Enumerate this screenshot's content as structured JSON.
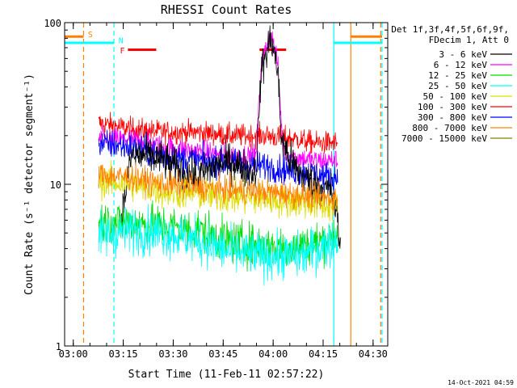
{
  "chart_data": {
    "type": "line",
    "title": "RHESSI Count Rates",
    "xlabel": "Start Time (11-Feb-11 02:57:22)",
    "ylabel": "Count Rate (s⁻¹ detector segment⁻¹)",
    "yscale": "log",
    "ylim": [
      1,
      100
    ],
    "xlim_minutes": [
      0,
      97
    ],
    "x_ticks": [
      {
        "label": "03:00",
        "t": 2.6
      },
      {
        "label": "03:15",
        "t": 17.6
      },
      {
        "label": "03:30",
        "t": 32.6
      },
      {
        "label": "03:45",
        "t": 47.6
      },
      {
        "label": "04:00",
        "t": 62.6
      },
      {
        "label": "04:15",
        "t": 77.6
      },
      {
        "label": "04:30",
        "t": 92.6
      }
    ],
    "y_ticks": [
      {
        "label": "1",
        "v": 1
      },
      {
        "label": "10",
        "v": 10
      },
      {
        "label": "100",
        "v": 100
      }
    ],
    "legend": {
      "title_lines": [
        "Det 1f,3f,4f,5f,6f,9f,",
        "FDecim 1, Att 0"
      ],
      "entries": [
        {
          "label": "3 - 6 keV",
          "color": "#000000"
        },
        {
          "label": "6 - 12 keV",
          "color": "#ff00ff"
        },
        {
          "label": "12 - 25 keV",
          "color": "#00dd00"
        },
        {
          "label": "25 - 50 keV",
          "color": "#00ffff"
        },
        {
          "label": "50 - 100 keV",
          "color": "#dddd00"
        },
        {
          "label": "100 - 300 keV",
          "color": "#ff0000"
        },
        {
          "label": "300 - 800 keV",
          "color": "#0000ff"
        },
        {
          "label": "800 - 7000 keV",
          "color": "#ff8000"
        },
        {
          "label": "7000 - 15000 keV",
          "color": "#808000"
        }
      ]
    },
    "series": [
      {
        "name": "100 - 300 keV",
        "color": "#ff0000",
        "t": [
          10.2,
          20,
          30,
          40,
          50,
          60,
          70,
          75,
          82
        ],
        "v": [
          24,
          22,
          21,
          21,
          20,
          20,
          19,
          18,
          18
        ],
        "noise": 0.07
      },
      {
        "name": "6 - 12 keV",
        "color": "#ff00ff",
        "t": [
          10.2,
          20,
          30,
          40,
          50,
          57.5,
          59,
          61,
          62,
          63,
          64,
          65.5,
          67,
          75,
          82
        ],
        "v": [
          19,
          19,
          17,
          16,
          15,
          15,
          55,
          75,
          85,
          70,
          55,
          17,
          15,
          14,
          14
        ],
        "noise": 0.07
      },
      {
        "name": "300 - 800 keV",
        "color": "#0000ff",
        "t": [
          10.2,
          20,
          30,
          40,
          50,
          60,
          70,
          75,
          82
        ],
        "v": [
          18,
          17,
          15,
          14,
          13.5,
          13,
          12,
          11.5,
          11
        ],
        "noise": 0.09
      },
      {
        "name": "3 - 6 keV",
        "color": "#000000",
        "t": [
          17,
          20,
          25,
          30,
          35,
          40,
          45,
          50,
          55,
          57.5,
          59,
          61,
          62,
          63,
          64,
          65,
          67,
          70,
          75,
          80,
          82,
          83
        ],
        "v": [
          6,
          15,
          15,
          14,
          12,
          11,
          13,
          14,
          12,
          12,
          50,
          70,
          80,
          65,
          50,
          20,
          15,
          12,
          10,
          9,
          6,
          3.5
        ],
        "noise": 0.12
      },
      {
        "name": "50 - 100 keV",
        "color": "#dddd00",
        "t": [
          10.2,
          20,
          30,
          40,
          50,
          60,
          70,
          75,
          82
        ],
        "v": [
          10.5,
          10,
          9,
          8.7,
          8.3,
          8,
          7.8,
          7.5,
          7.3
        ],
        "noise": 0.1
      },
      {
        "name": "800 - 7000 keV",
        "color": "#ff8000",
        "t": [
          10.2,
          20,
          30,
          40,
          50,
          60,
          70,
          75,
          82
        ],
        "v": [
          11.5,
          11,
          10,
          9.6,
          9.2,
          9,
          8.6,
          8.3,
          8.2
        ],
        "noise": 0.08
      },
      {
        "name": "12 - 25 keV",
        "color": "#00dd00",
        "t": [
          10.2,
          20,
          30,
          40,
          50,
          60,
          70,
          75,
          82
        ],
        "v": [
          5.8,
          5.8,
          5.5,
          5.2,
          4.4,
          4.1,
          4.1,
          4.3,
          4.9
        ],
        "noise": 0.13
      },
      {
        "name": "25 - 50 keV",
        "color": "#00ffff",
        "t": [
          10.2,
          20,
          30,
          40,
          50,
          60,
          70,
          75,
          82
        ],
        "v": [
          4.8,
          5.2,
          5.0,
          4.5,
          3.8,
          3.6,
          3.6,
          3.9,
          4.6
        ],
        "noise": 0.14
      }
    ],
    "markers": {
      "vertical_lines": [
        {
          "t": 5.7,
          "color": "#ff8000",
          "dash": true
        },
        {
          "t": 14.8,
          "color": "#00ffff",
          "dash": true
        },
        {
          "t": 80.8,
          "color": "#00ffff",
          "dash": false
        },
        {
          "t": 85.9,
          "color": "#ff8000",
          "dash": false
        },
        {
          "t": 94.9,
          "color": "#ff8000",
          "dash": true
        },
        {
          "t": 95.3,
          "color": "#00ffff",
          "dash": true
        }
      ],
      "bars": [
        {
          "t0": -2.5,
          "t1": 5.7,
          "v": 82,
          "color": "#ff8000"
        },
        {
          "t0": -2.5,
          "t1": 14.8,
          "v": 75,
          "color": "#00ffff"
        },
        {
          "t0": 19,
          "t1": 27.5,
          "v": 68,
          "color": "#ff0000"
        },
        {
          "t0": 58.5,
          "t1": 66.5,
          "v": 68,
          "color": "#ff0000"
        },
        {
          "t0": 85.9,
          "t1": 95.3,
          "v": 82,
          "color": "#ff8000"
        },
        {
          "t0": 80.8,
          "t1": 95.3,
          "v": 75,
          "color": "#00ffff"
        }
      ],
      "labels": [
        {
          "text": "S",
          "t": 7.0,
          "v": 84,
          "color": "#ff8000"
        },
        {
          "text": "N",
          "t": 16.2,
          "v": 77,
          "color": "#00ffff"
        },
        {
          "text": "F",
          "t": 16.6,
          "v": 67,
          "color": "#ff0000"
        }
      ]
    }
  },
  "footer_date": "14-Oct-2021 04:59"
}
